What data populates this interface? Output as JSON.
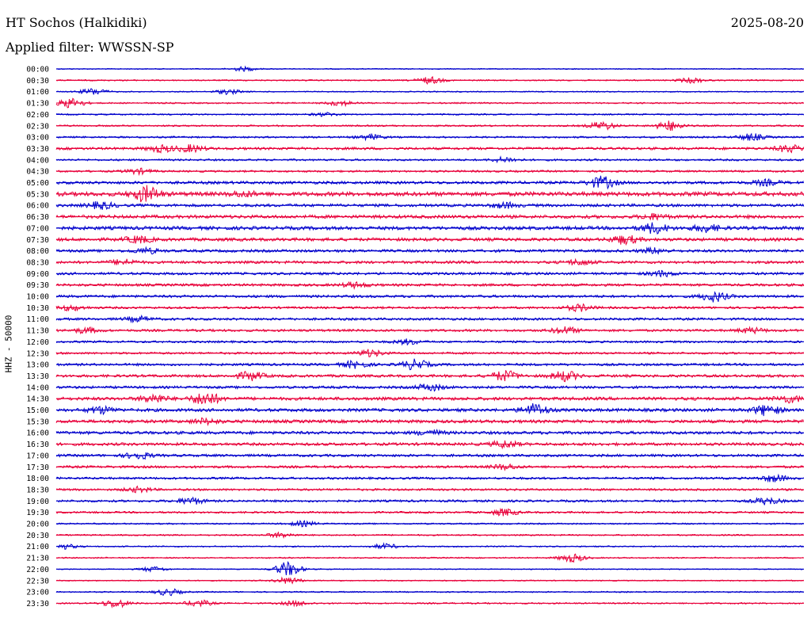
{
  "header": {
    "station": "HT Sochos (Halkidiki)",
    "date": "2025-08-20",
    "filter": "Applied filter: WWSSN-SP"
  },
  "chart_data": {
    "type": "line",
    "title": "HT Sochos (Halkidiki)",
    "ylabel": "HHZ - 50000",
    "xlabel": "",
    "row_labels": [
      "00:00",
      "00:30",
      "01:00",
      "01:30",
      "02:00",
      "02:30",
      "03:00",
      "03:30",
      "04:00",
      "04:30",
      "05:00",
      "05:30",
      "06:00",
      "06:30",
      "07:00",
      "07:30",
      "08:00",
      "08:30",
      "09:00",
      "09:30",
      "10:00",
      "10:30",
      "11:00",
      "11:30",
      "12:00",
      "12:30",
      "13:00",
      "13:30",
      "14:00",
      "14:30",
      "15:00",
      "15:30",
      "16:00",
      "16:30",
      "17:00",
      "17:30",
      "18:00",
      "18:30",
      "19:00",
      "19:30",
      "20:00",
      "20:30",
      "21:00",
      "21:30",
      "22:00",
      "22:30",
      "23:00",
      "23:30"
    ],
    "row_minutes": 30,
    "colors": [
      "#0000cc",
      "#e8003a"
    ],
    "series_note": "trace amplitude per row is relative; alternating blue/red rows",
    "noise_level": [
      0.6,
      0.8,
      0.7,
      0.9,
      0.9,
      1.0,
      1.1,
      1.6,
      1.2,
      1.2,
      1.8,
      2.6,
      1.8,
      2.1,
      2.2,
      2.0,
      1.7,
      1.7,
      1.6,
      1.6,
      1.6,
      1.4,
      1.5,
      1.5,
      1.3,
      1.3,
      1.5,
      1.7,
      1.6,
      2.0,
      2.0,
      2.0,
      1.9,
      1.8,
      1.6,
      1.5,
      1.4,
      1.3,
      1.4,
      1.2,
      0.9,
      0.9,
      0.8,
      0.8,
      0.6,
      0.7,
      0.8,
      0.9
    ],
    "events": [
      [
        [
          0.25,
          2.5
        ]
      ],
      [
        [
          0.5,
          4
        ],
        [
          0.85,
          3
        ]
      ],
      [
        [
          0.05,
          4
        ],
        [
          0.23,
          3
        ]
      ],
      [
        [
          0.02,
          6
        ],
        [
          0.38,
          3
        ]
      ],
      [
        [
          0.36,
          2
        ]
      ],
      [
        [
          0.73,
          5
        ],
        [
          0.82,
          6
        ]
      ],
      [
        [
          0.42,
          3
        ],
        [
          0.93,
          4
        ]
      ],
      [
        [
          0.14,
          4
        ],
        [
          0.18,
          4
        ],
        [
          0.98,
          4
        ]
      ],
      [
        [
          0.6,
          3
        ]
      ],
      [
        [
          0.11,
          3
        ]
      ],
      [
        [
          0.73,
          7
        ],
        [
          0.95,
          3
        ]
      ],
      [
        [
          0.12,
          9
        ],
        [
          0.25,
          2.5
        ]
      ],
      [
        [
          0.06,
          4
        ],
        [
          0.6,
          3
        ]
      ],
      [
        [
          0.8,
          3
        ]
      ],
      [
        [
          0.8,
          6
        ],
        [
          0.87,
          4
        ]
      ],
      [
        [
          0.11,
          4
        ],
        [
          0.76,
          5
        ]
      ],
      [
        [
          0.12,
          3
        ],
        [
          0.8,
          3
        ]
      ],
      [
        [
          0.09,
          3
        ],
        [
          0.7,
          3
        ]
      ],
      [
        [
          0.81,
          3
        ]
      ],
      [
        [
          0.4,
          3
        ]
      ],
      [
        [
          0.88,
          6
        ]
      ],
      [
        [
          0.02,
          3
        ],
        [
          0.7,
          4
        ]
      ],
      [
        [
          0.11,
          3
        ]
      ],
      [
        [
          0.04,
          3
        ],
        [
          0.68,
          4
        ],
        [
          0.93,
          3
        ]
      ],
      [
        [
          0.47,
          3
        ]
      ],
      [
        [
          0.42,
          4
        ]
      ],
      [
        [
          0.4,
          4
        ],
        [
          0.48,
          6
        ]
      ],
      [
        [
          0.26,
          5
        ],
        [
          0.6,
          6
        ],
        [
          0.68,
          6
        ]
      ],
      [
        [
          0.5,
          4
        ]
      ],
      [
        [
          0.13,
          5
        ],
        [
          0.2,
          8
        ],
        [
          0.98,
          4
        ]
      ],
      [
        [
          0.06,
          4
        ],
        [
          0.64,
          7
        ],
        [
          0.95,
          6
        ]
      ],
      [
        [
          0.2,
          3
        ]
      ],
      [
        [
          0.5,
          3
        ]
      ],
      [
        [
          0.6,
          4
        ]
      ],
      [
        [
          0.11,
          4
        ]
      ],
      [
        [
          0.6,
          3
        ]
      ],
      [
        [
          0.96,
          4
        ]
      ],
      [
        [
          0.11,
          3
        ]
      ],
      [
        [
          0.18,
          4
        ],
        [
          0.95,
          4
        ]
      ],
      [
        [
          0.6,
          4
        ]
      ],
      [
        [
          0.33,
          3
        ]
      ],
      [
        [
          0.3,
          3
        ]
      ],
      [
        [
          0.01,
          3
        ],
        [
          0.44,
          3
        ]
      ],
      [
        [
          0.69,
          5
        ]
      ],
      [
        [
          0.13,
          3
        ],
        [
          0.31,
          9
        ]
      ],
      [
        [
          0.31,
          4
        ]
      ],
      [
        [
          0.15,
          4
        ]
      ],
      [
        [
          0.08,
          5
        ],
        [
          0.19,
          4
        ],
        [
          0.32,
          3
        ]
      ]
    ]
  }
}
